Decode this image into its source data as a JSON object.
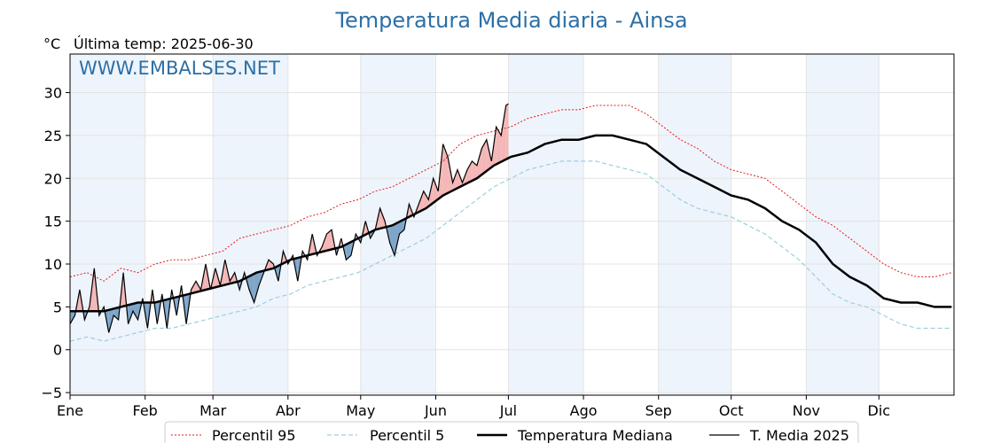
{
  "chart_data": {
    "type": "line",
    "title": "Temperatura Media diaria - Ainsa",
    "unit_label": "°C",
    "subtitle": "Última temp: 2025-06-30",
    "watermark": "WWW.EMBALSES.NET",
    "ylim": [
      -5.3,
      34.5
    ],
    "yticks": [
      -5,
      0,
      5,
      10,
      15,
      20,
      25,
      30
    ],
    "ytick_labels": [
      "−5",
      "0",
      "5",
      "10",
      "15",
      "20",
      "25",
      "30"
    ],
    "xlim_day": [
      1,
      366
    ],
    "months": [
      {
        "label": "Ene",
        "day": 1
      },
      {
        "label": "Feb",
        "day": 32
      },
      {
        "label": "Mar",
        "day": 60
      },
      {
        "label": "Abr",
        "day": 91
      },
      {
        "label": "May",
        "day": 121
      },
      {
        "label": "Jun",
        "day": 152
      },
      {
        "label": "Jul",
        "day": 182
      },
      {
        "label": "Ago",
        "day": 213
      },
      {
        "label": "Sep",
        "day": 244
      },
      {
        "label": "Oct",
        "day": 274
      },
      {
        "label": "Nov",
        "day": 305
      },
      {
        "label": "Dic",
        "day": 335
      }
    ],
    "shaded_month_bands": [
      [
        1,
        32
      ],
      [
        60,
        91
      ],
      [
        121,
        152
      ],
      [
        182,
        213
      ],
      [
        244,
        274
      ],
      [
        305,
        335
      ]
    ],
    "grid": true,
    "legend_position": "bottom",
    "legend": [
      {
        "name": "Percentil 95",
        "style": "dotted-red"
      },
      {
        "name": "Percentil 5",
        "style": "dashed-lightblue"
      },
      {
        "name": "Temperatura Mediana",
        "style": "thick-black"
      },
      {
        "name": "T. Media 2025",
        "style": "thin-black"
      }
    ],
    "series": [
      {
        "name": "Percentil 95",
        "color": "#e41a1c",
        "points": [
          [
            1,
            8.5
          ],
          [
            8,
            9
          ],
          [
            15,
            8
          ],
          [
            22,
            9.5
          ],
          [
            29,
            9
          ],
          [
            36,
            10
          ],
          [
            43,
            10.5
          ],
          [
            50,
            10.5
          ],
          [
            57,
            11
          ],
          [
            64,
            11.5
          ],
          [
            71,
            13
          ],
          [
            78,
            13.5
          ],
          [
            85,
            14
          ],
          [
            92,
            14.5
          ],
          [
            99,
            15.5
          ],
          [
            106,
            16
          ],
          [
            113,
            17
          ],
          [
            120,
            17.5
          ],
          [
            127,
            18.5
          ],
          [
            134,
            19
          ],
          [
            141,
            20
          ],
          [
            148,
            21
          ],
          [
            155,
            22
          ],
          [
            162,
            24
          ],
          [
            169,
            25
          ],
          [
            176,
            25.5
          ],
          [
            183,
            26
          ],
          [
            190,
            27
          ],
          [
            197,
            27.5
          ],
          [
            204,
            28
          ],
          [
            211,
            28
          ],
          [
            218,
            28.5
          ],
          [
            225,
            28.5
          ],
          [
            232,
            28.5
          ],
          [
            239,
            27.5
          ],
          [
            246,
            26
          ],
          [
            253,
            24.5
          ],
          [
            260,
            23.5
          ],
          [
            267,
            22
          ],
          [
            274,
            21
          ],
          [
            281,
            20.5
          ],
          [
            288,
            20
          ],
          [
            295,
            18.5
          ],
          [
            302,
            17
          ],
          [
            309,
            15.5
          ],
          [
            316,
            14.5
          ],
          [
            323,
            13
          ],
          [
            330,
            11.5
          ],
          [
            337,
            10
          ],
          [
            344,
            9
          ],
          [
            351,
            8.5
          ],
          [
            358,
            8.5
          ],
          [
            365,
            9
          ]
        ]
      },
      {
        "name": "Percentil 5",
        "color": "#9ccfe0",
        "points": [
          [
            1,
            1
          ],
          [
            8,
            1.5
          ],
          [
            15,
            1
          ],
          [
            22,
            1.5
          ],
          [
            29,
            2
          ],
          [
            36,
            2.5
          ],
          [
            43,
            2.5
          ],
          [
            50,
            3
          ],
          [
            57,
            3.5
          ],
          [
            64,
            4
          ],
          [
            71,
            4.5
          ],
          [
            78,
            5
          ],
          [
            85,
            6
          ],
          [
            92,
            6.5
          ],
          [
            99,
            7.5
          ],
          [
            106,
            8
          ],
          [
            113,
            8.5
          ],
          [
            120,
            9
          ],
          [
            127,
            10
          ],
          [
            134,
            11
          ],
          [
            141,
            12
          ],
          [
            148,
            13
          ],
          [
            155,
            14.5
          ],
          [
            162,
            16
          ],
          [
            169,
            17.5
          ],
          [
            176,
            19
          ],
          [
            183,
            20
          ],
          [
            190,
            21
          ],
          [
            197,
            21.5
          ],
          [
            204,
            22
          ],
          [
            211,
            22
          ],
          [
            218,
            22
          ],
          [
            225,
            21.5
          ],
          [
            232,
            21
          ],
          [
            239,
            20.5
          ],
          [
            246,
            19
          ],
          [
            253,
            17.5
          ],
          [
            260,
            16.5
          ],
          [
            267,
            16
          ],
          [
            274,
            15.5
          ],
          [
            281,
            14.5
          ],
          [
            288,
            13.5
          ],
          [
            295,
            12
          ],
          [
            302,
            10.5
          ],
          [
            309,
            8.5
          ],
          [
            316,
            6.5
          ],
          [
            323,
            5.5
          ],
          [
            330,
            5
          ],
          [
            337,
            4
          ],
          [
            344,
            3
          ],
          [
            351,
            2.5
          ],
          [
            358,
            2.5
          ],
          [
            365,
            2.5
          ]
        ]
      },
      {
        "name": "Temperatura Mediana",
        "color": "#000000",
        "points": [
          [
            1,
            4.5
          ],
          [
            8,
            4.5
          ],
          [
            15,
            4.5
          ],
          [
            22,
            5
          ],
          [
            29,
            5.5
          ],
          [
            36,
            5.5
          ],
          [
            43,
            6
          ],
          [
            50,
            6.5
          ],
          [
            57,
            7
          ],
          [
            64,
            7.5
          ],
          [
            71,
            8
          ],
          [
            78,
            9
          ],
          [
            85,
            9.5
          ],
          [
            92,
            10.5
          ],
          [
            99,
            11
          ],
          [
            106,
            11.5
          ],
          [
            113,
            12
          ],
          [
            120,
            13
          ],
          [
            127,
            14
          ],
          [
            134,
            14.5
          ],
          [
            141,
            15.5
          ],
          [
            148,
            16.5
          ],
          [
            155,
            18
          ],
          [
            162,
            19
          ],
          [
            169,
            20
          ],
          [
            176,
            21.5
          ],
          [
            183,
            22.5
          ],
          [
            190,
            23
          ],
          [
            197,
            24
          ],
          [
            204,
            24.5
          ],
          [
            211,
            24.5
          ],
          [
            218,
            25
          ],
          [
            225,
            25
          ],
          [
            232,
            24.5
          ],
          [
            239,
            24
          ],
          [
            246,
            22.5
          ],
          [
            253,
            21
          ],
          [
            260,
            20
          ],
          [
            267,
            19
          ],
          [
            274,
            18
          ],
          [
            281,
            17.5
          ],
          [
            288,
            16.5
          ],
          [
            295,
            15
          ],
          [
            302,
            14
          ],
          [
            309,
            12.5
          ],
          [
            316,
            10
          ],
          [
            323,
            8.5
          ],
          [
            330,
            7.5
          ],
          [
            337,
            6
          ],
          [
            344,
            5.5
          ],
          [
            351,
            5.5
          ],
          [
            358,
            5
          ],
          [
            365,
            5
          ]
        ]
      },
      {
        "name": "T. Media 2025",
        "color": "#000000",
        "points": [
          [
            1,
            3
          ],
          [
            3,
            4
          ],
          [
            5,
            7
          ],
          [
            7,
            3.5
          ],
          [
            9,
            5
          ],
          [
            11,
            9.5
          ],
          [
            13,
            4
          ],
          [
            15,
            5
          ],
          [
            17,
            2
          ],
          [
            19,
            4
          ],
          [
            21,
            3.5
          ],
          [
            23,
            9
          ],
          [
            25,
            3
          ],
          [
            27,
            4.5
          ],
          [
            29,
            3.5
          ],
          [
            31,
            6
          ],
          [
            33,
            2.5
          ],
          [
            35,
            7
          ],
          [
            37,
            3
          ],
          [
            39,
            6.5
          ],
          [
            41,
            2.5
          ],
          [
            43,
            7
          ],
          [
            45,
            4
          ],
          [
            47,
            7.5
          ],
          [
            49,
            3
          ],
          [
            51,
            7
          ],
          [
            53,
            8
          ],
          [
            55,
            7
          ],
          [
            57,
            10
          ],
          [
            59,
            7
          ],
          [
            61,
            9.5
          ],
          [
            63,
            7.5
          ],
          [
            65,
            10.5
          ],
          [
            67,
            8
          ],
          [
            69,
            9
          ],
          [
            71,
            7
          ],
          [
            73,
            9
          ],
          [
            75,
            7
          ],
          [
            77,
            5.5
          ],
          [
            79,
            7.5
          ],
          [
            81,
            9
          ],
          [
            83,
            10.5
          ],
          [
            85,
            10
          ],
          [
            87,
            8
          ],
          [
            89,
            11.5
          ],
          [
            91,
            10
          ],
          [
            93,
            11
          ],
          [
            95,
            8
          ],
          [
            97,
            11.5
          ],
          [
            99,
            10.5
          ],
          [
            101,
            13.5
          ],
          [
            103,
            11
          ],
          [
            105,
            12
          ],
          [
            107,
            13.5
          ],
          [
            109,
            14
          ],
          [
            111,
            11
          ],
          [
            113,
            13
          ],
          [
            115,
            10.5
          ],
          [
            117,
            11
          ],
          [
            119,
            13.5
          ],
          [
            121,
            12.5
          ],
          [
            123,
            15
          ],
          [
            125,
            13
          ],
          [
            127,
            14
          ],
          [
            129,
            16.5
          ],
          [
            131,
            15
          ],
          [
            133,
            12.5
          ],
          [
            135,
            11
          ],
          [
            137,
            13.5
          ],
          [
            139,
            14
          ],
          [
            141,
            17
          ],
          [
            143,
            15.5
          ],
          [
            145,
            17
          ],
          [
            147,
            18.5
          ],
          [
            149,
            17.5
          ],
          [
            151,
            20
          ],
          [
            153,
            18.5
          ],
          [
            155,
            24
          ],
          [
            157,
            22.5
          ],
          [
            159,
            19.5
          ],
          [
            161,
            21
          ],
          [
            163,
            19.5
          ],
          [
            165,
            21
          ],
          [
            167,
            22
          ],
          [
            169,
            21.5
          ],
          [
            171,
            23.5
          ],
          [
            173,
            24.5
          ],
          [
            175,
            22
          ],
          [
            177,
            26
          ],
          [
            179,
            25
          ],
          [
            181,
            28.5
          ],
          [
            182,
            28.7
          ]
        ]
      }
    ]
  }
}
